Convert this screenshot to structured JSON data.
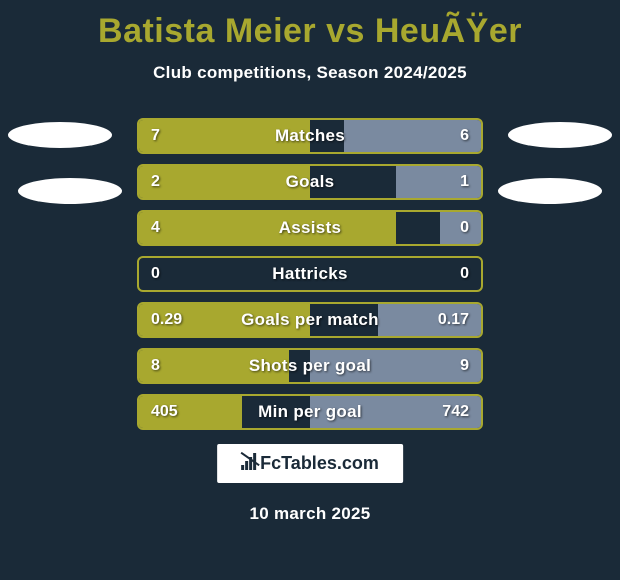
{
  "title": "Batista Meier vs HeuÃŸer",
  "subtitle": "Club competitions, Season 2024/2025",
  "date": "10 march 2025",
  "watermark_text": "FcTables.com",
  "colors": {
    "background": "#1a2a38",
    "accent": "#a8a82f",
    "bar_right": "#7a8aa0",
    "text": "#ffffff"
  },
  "stats": [
    {
      "label": "Matches",
      "left_val": "7",
      "right_val": "6",
      "left_pct": 50,
      "right_pct": 40
    },
    {
      "label": "Goals",
      "left_val": "2",
      "right_val": "1",
      "left_pct": 50,
      "right_pct": 25
    },
    {
      "label": "Assists",
      "left_val": "4",
      "right_val": "0",
      "left_pct": 75,
      "right_pct": 12
    },
    {
      "label": "Hattricks",
      "left_val": "0",
      "right_val": "0",
      "left_pct": 0,
      "right_pct": 0
    },
    {
      "label": "Goals per match",
      "left_val": "0.29",
      "right_val": "0.17",
      "left_pct": 50,
      "right_pct": 30
    },
    {
      "label": "Shots per goal",
      "left_val": "8",
      "right_val": "9",
      "left_pct": 44,
      "right_pct": 50
    },
    {
      "label": "Min per goal",
      "left_val": "405",
      "right_val": "742",
      "left_pct": 30,
      "right_pct": 50
    }
  ]
}
